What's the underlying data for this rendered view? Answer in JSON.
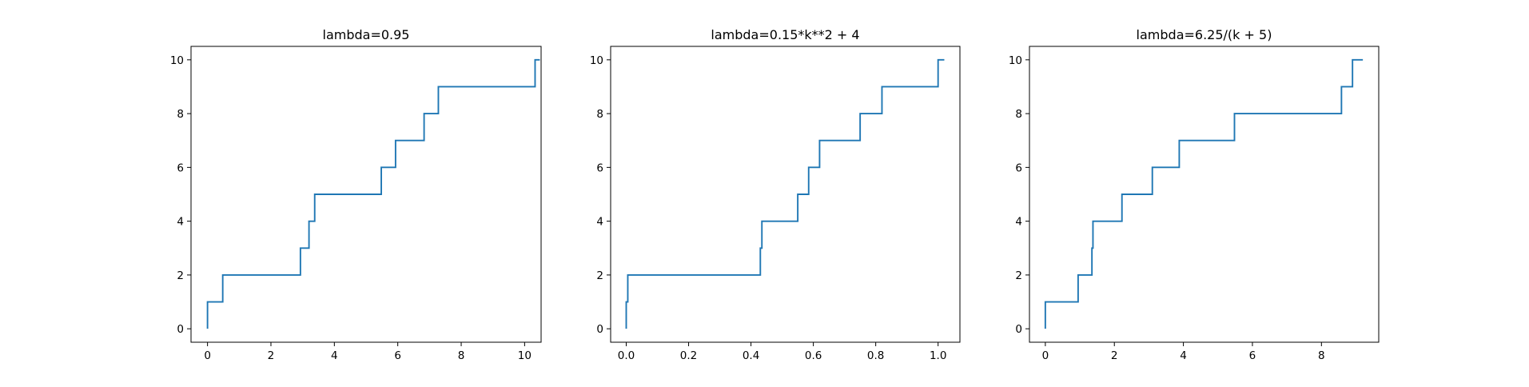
{
  "chart_data": [
    {
      "type": "line",
      "title": "lambda=0.95",
      "xlim": [
        -0.52,
        10.52
      ],
      "ylim": [
        -0.5,
        10.5
      ],
      "xticks": [
        0,
        2,
        4,
        6,
        8,
        10
      ],
      "yticks": [
        0,
        2,
        4,
        6,
        8,
        10
      ],
      "step": "post",
      "line_color": "#1f77b4",
      "x": [
        0.0,
        0.0,
        0.48,
        2.93,
        3.2,
        3.38,
        5.48,
        5.93,
        6.83,
        7.28,
        10.33,
        10.48
      ],
      "y": [
        0,
        1,
        2,
        3,
        4,
        5,
        6,
        7,
        8,
        9,
        10,
        10
      ]
    },
    {
      "type": "line",
      "title": "lambda=0.15*k**2 + 4",
      "xlim": [
        -0.05,
        1.07
      ],
      "ylim": [
        -0.5,
        10.5
      ],
      "xticks": [
        0.0,
        0.2,
        0.4,
        0.6,
        0.8,
        1.0
      ],
      "yticks": [
        0,
        2,
        4,
        6,
        8,
        10
      ],
      "step": "post",
      "line_color": "#1f77b4",
      "x": [
        0.0,
        0.0,
        0.005,
        0.43,
        0.435,
        0.55,
        0.585,
        0.62,
        0.75,
        0.82,
        1.0,
        1.02
      ],
      "y": [
        0,
        1,
        2,
        3,
        4,
        5,
        6,
        7,
        8,
        9,
        10,
        10
      ]
    },
    {
      "type": "line",
      "title": "lambda=6.25/(k + 5)",
      "xlim": [
        -0.46,
        9.66
      ],
      "ylim": [
        -0.5,
        10.5
      ],
      "xticks": [
        0,
        2,
        4,
        6,
        8
      ],
      "yticks": [
        0,
        2,
        4,
        6,
        8,
        10
      ],
      "step": "post",
      "line_color": "#1f77b4",
      "x": [
        0.0,
        0.0,
        0.95,
        1.35,
        1.38,
        2.22,
        3.1,
        3.88,
        5.48,
        8.58,
        8.9,
        9.2
      ],
      "y": [
        0,
        1,
        2,
        3,
        4,
        5,
        6,
        7,
        8,
        9,
        10,
        10
      ]
    }
  ]
}
